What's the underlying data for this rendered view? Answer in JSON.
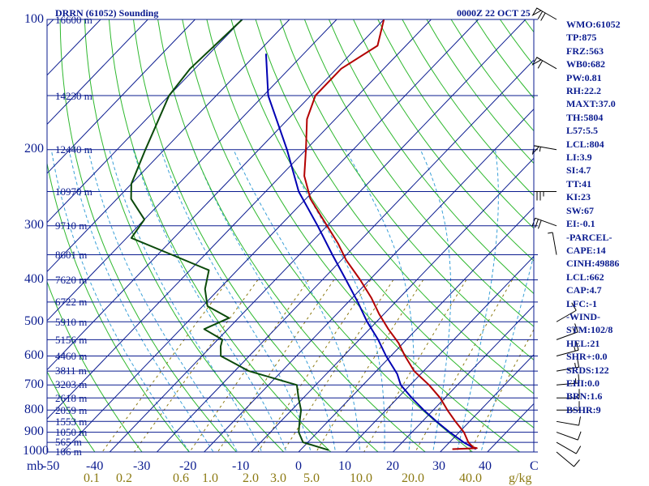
{
  "header": {
    "station_title": "DRRN (61052) Sounding",
    "datetime": "0000Z 22 OCT 25"
  },
  "colors": {
    "isobar": "#0a1b8f",
    "isotherm": "#0a1b8f",
    "dry_adiabat": "#2eb82e",
    "moist_adiabat": "#3aa0d8",
    "mixing_ratio": "#8c7a12",
    "temperature": "#b30000",
    "dewpoint": "#0b4a0b",
    "parcel": "#0000b3",
    "text": "#0a1b8f"
  },
  "axis": {
    "mb_label": "mb",
    "kg_label": "g/kg"
  },
  "sidebar": {
    "items": [
      "WMO:61052",
      "TP:875",
      "FRZ:563",
      "WB0:682",
      "PW:0.81",
      "RH:22.2",
      "MAXT:37.0",
      "TH:5804",
      "L57:5.5",
      "LCL:804",
      "LI:3.9",
      "SI:4.7",
      "TT:41",
      "KI:23",
      "SW:67",
      "EI:-0.1",
      "-PARCEL-",
      "CAPE:14",
      "CINH:49886",
      "LCL:662",
      "CAP:4.7",
      "LFC:-1",
      "-WIND-",
      "STM:102/8",
      "HEL:21",
      "SHR+:0.0",
      "SRDS:122",
      "EHI:0.0",
      "BRN:1.6",
      "BSHR:9"
    ]
  },
  "chart_data": {
    "type": "skew-t",
    "pressure_ticks": [
      "100",
      "200",
      "300",
      "400",
      "500",
      "600",
      "700",
      "800",
      "900",
      "1000"
    ],
    "pressure_tick_values": [
      100,
      200,
      300,
      400,
      500,
      600,
      700,
      800,
      900,
      1000
    ],
    "temperature_ticks": [
      "-50",
      "-40",
      "-30",
      "-20",
      "-10",
      "0",
      "10",
      "20",
      "30",
      "40",
      "C"
    ],
    "mixing_ratio_ticks": [
      "0.1",
      "0.2",
      "0.6",
      "1.0",
      "2.0",
      "3.0",
      "5.0",
      "10.0",
      "20.0",
      "40.0"
    ],
    "height_levels": [
      {
        "p": 100,
        "label": "16600 m"
      },
      {
        "p": 150,
        "label": "14230 m"
      },
      {
        "p": 200,
        "label": "12440 m"
      },
      {
        "p": 250,
        "label": "10970 m"
      },
      {
        "p": 300,
        "label": "9710 m"
      },
      {
        "p": 350,
        "label": "8601 m"
      },
      {
        "p": 400,
        "label": "7620 m"
      },
      {
        "p": 450,
        "label": "6722 m"
      },
      {
        "p": 500,
        "label": "5910 m"
      },
      {
        "p": 550,
        "label": "5156 m"
      },
      {
        "p": 600,
        "label": "4460 m"
      },
      {
        "p": 650,
        "label": "3811 m"
      },
      {
        "p": 700,
        "label": "3203 m"
      },
      {
        "p": 750,
        "label": "2618 m"
      },
      {
        "p": 800,
        "label": "2059 m"
      },
      {
        "p": 850,
        "label": "1553 m"
      },
      {
        "p": 900,
        "label": "1050 m"
      },
      {
        "p": 950,
        "label": "565 m"
      },
      {
        "p": 1000,
        "label": "106 m"
      }
    ],
    "temperature_profile": [
      [
        100,
        -70
      ],
      [
        115,
        -66
      ],
      [
        130,
        -69
      ],
      [
        150,
        -69
      ],
      [
        170,
        -66
      ],
      [
        200,
        -60
      ],
      [
        230,
        -55
      ],
      [
        260,
        -49
      ],
      [
        300,
        -40
      ],
      [
        330,
        -34
      ],
      [
        360,
        -29
      ],
      [
        400,
        -22
      ],
      [
        440,
        -16
      ],
      [
        480,
        -11
      ],
      [
        520,
        -6
      ],
      [
        560,
        -1
      ],
      [
        600,
        3
      ],
      [
        650,
        8
      ],
      [
        700,
        14
      ],
      [
        750,
        19
      ],
      [
        800,
        23
      ],
      [
        850,
        27
      ],
      [
        900,
        31
      ],
      [
        950,
        34
      ],
      [
        975,
        36
      ],
      [
        980,
        37
      ],
      [
        985,
        32
      ]
    ],
    "dewpoint_profile": [
      [
        100,
        -100
      ],
      [
        130,
        -101
      ],
      [
        150,
        -100
      ],
      [
        200,
        -94
      ],
      [
        240,
        -90
      ],
      [
        260,
        -87
      ],
      [
        290,
        -80
      ],
      [
        320,
        -79
      ],
      [
        350,
        -67
      ],
      [
        380,
        -56
      ],
      [
        420,
        -53
      ],
      [
        460,
        -49
      ],
      [
        490,
        -42
      ],
      [
        520,
        -45
      ],
      [
        550,
        -39
      ],
      [
        570,
        -38
      ],
      [
        600,
        -36
      ],
      [
        650,
        -27
      ],
      [
        700,
        -14
      ],
      [
        750,
        -11
      ],
      [
        800,
        -8
      ],
      [
        850,
        -6
      ],
      [
        900,
        -4
      ],
      [
        950,
        -1
      ],
      [
        990,
        6
      ]
    ],
    "parcel_profile": [
      [
        985,
        37
      ],
      [
        950,
        33
      ],
      [
        900,
        28
      ],
      [
        850,
        23
      ],
      [
        800,
        18
      ],
      [
        750,
        13
      ],
      [
        700,
        8
      ],
      [
        660,
        5
      ],
      [
        600,
        -1
      ],
      [
        550,
        -6
      ],
      [
        500,
        -12
      ],
      [
        450,
        -18
      ],
      [
        400,
        -25
      ],
      [
        350,
        -33
      ],
      [
        300,
        -42
      ],
      [
        250,
        -53
      ],
      [
        200,
        -64
      ],
      [
        150,
        -79
      ],
      [
        120,
        -88
      ]
    ],
    "wind_barbs": [
      {
        "p": 100,
        "dir": 300,
        "spd": 70
      },
      {
        "p": 130,
        "dir": 300,
        "spd": 60
      },
      {
        "p": 200,
        "dir": 280,
        "spd": 55
      },
      {
        "p": 250,
        "dir": 270,
        "spd": 35
      },
      {
        "p": 300,
        "dir": 290,
        "spd": 30
      },
      {
        "p": 350,
        "dir": 350,
        "spd": 5
      },
      {
        "p": 500,
        "dir": 60,
        "spd": 10
      },
      {
        "p": 550,
        "dir": 70,
        "spd": 15
      },
      {
        "p": 600,
        "dir": 75,
        "spd": 15
      },
      {
        "p": 650,
        "dir": 80,
        "spd": 15
      },
      {
        "p": 700,
        "dir": 85,
        "spd": 15
      },
      {
        "p": 750,
        "dir": 90,
        "spd": 10
      },
      {
        "p": 800,
        "dir": 90,
        "spd": 10
      },
      {
        "p": 850,
        "dir": 100,
        "spd": 10
      },
      {
        "p": 900,
        "dir": 110,
        "spd": 10
      },
      {
        "p": 950,
        "dir": 120,
        "spd": 10
      },
      {
        "p": 1000,
        "dir": 130,
        "spd": 10
      }
    ]
  }
}
